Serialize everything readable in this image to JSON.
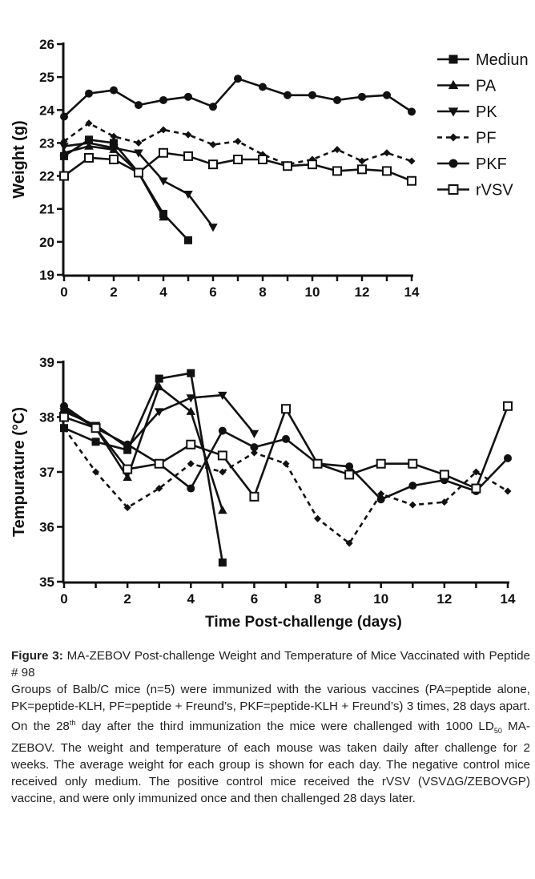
{
  "chart_data": [
    {
      "type": "line",
      "title": "",
      "ylabel": "Weight (g)",
      "xlabel": "",
      "xlim": [
        0,
        14
      ],
      "ylim": [
        19,
        26
      ],
      "xticks": [
        "0",
        "2",
        "4",
        "6",
        "8",
        "10",
        "12",
        "14"
      ],
      "yticks": [
        "19",
        "20",
        "21",
        "22",
        "23",
        "24",
        "25",
        "26"
      ],
      "legend_position": "right",
      "series": [
        {
          "name": "Mediun",
          "marker": "square-filled",
          "dashed": false,
          "x": [
            0,
            1,
            2,
            3,
            4,
            5
          ],
          "values": [
            22.6,
            23.1,
            23.0,
            22.1,
            20.85,
            20.05
          ]
        },
        {
          "name": "PA",
          "marker": "triangle-up",
          "dashed": false,
          "x": [
            0,
            1,
            2,
            3,
            4
          ],
          "values": [
            22.7,
            22.9,
            22.8,
            22.1,
            20.75
          ]
        },
        {
          "name": "PK",
          "marker": "triangle-down",
          "dashed": false,
          "x": [
            0,
            1,
            2,
            3,
            4,
            5,
            6
          ],
          "values": [
            22.9,
            23.0,
            22.85,
            22.7,
            21.85,
            21.45,
            20.45
          ]
        },
        {
          "name": "PF",
          "marker": "diamond",
          "dashed": true,
          "x": [
            0,
            1,
            2,
            3,
            4,
            5,
            6,
            7,
            8,
            9,
            10,
            11,
            12,
            13,
            14
          ],
          "values": [
            23.05,
            23.6,
            23.2,
            23.0,
            23.4,
            23.25,
            22.95,
            23.05,
            22.65,
            22.35,
            22.5,
            22.8,
            22.45,
            22.7,
            22.45
          ]
        },
        {
          "name": "PKF",
          "marker": "circle-filled",
          "dashed": false,
          "x": [
            0,
            1,
            2,
            3,
            4,
            5,
            6,
            7,
            8,
            9,
            10,
            11,
            12,
            13,
            14
          ],
          "values": [
            23.8,
            24.5,
            24.6,
            24.15,
            24.3,
            24.4,
            24.1,
            24.95,
            24.7,
            24.45,
            24.45,
            24.3,
            24.4,
            24.45,
            23.95
          ]
        },
        {
          "name": "rVSV",
          "marker": "square-open",
          "dashed": false,
          "x": [
            0,
            1,
            2,
            3,
            4,
            5,
            6,
            7,
            8,
            9,
            10,
            11,
            12,
            13,
            14
          ],
          "values": [
            22.0,
            22.55,
            22.5,
            22.1,
            22.7,
            22.6,
            22.35,
            22.5,
            22.5,
            22.3,
            22.35,
            22.15,
            22.2,
            22.15,
            21.85
          ]
        }
      ]
    },
    {
      "type": "line",
      "title": "",
      "ylabel": "Tempurature (°C)",
      "xlabel": "Time Post-challenge (days)",
      "xlim": [
        0,
        14
      ],
      "ylim": [
        35,
        39
      ],
      "xticks": [
        "0",
        "2",
        "4",
        "6",
        "8",
        "10",
        "12",
        "14"
      ],
      "yticks": [
        "35",
        "36",
        "37",
        "38",
        "39"
      ],
      "legend_position": "none",
      "series": [
        {
          "name": "Mediun",
          "marker": "square-filled",
          "dashed": false,
          "x": [
            0,
            1,
            2,
            3,
            4,
            5
          ],
          "values": [
            37.8,
            37.55,
            37.4,
            38.7,
            38.8,
            35.35
          ]
        },
        {
          "name": "PA",
          "marker": "triangle-up",
          "dashed": false,
          "x": [
            0,
            1,
            2,
            3,
            4,
            5
          ],
          "values": [
            38.15,
            37.8,
            36.9,
            38.55,
            38.1,
            36.3
          ]
        },
        {
          "name": "PK",
          "marker": "triangle-down",
          "dashed": false,
          "x": [
            0,
            1,
            2,
            3,
            4,
            5,
            6
          ],
          "values": [
            38.1,
            37.85,
            37.45,
            38.1,
            38.35,
            38.4,
            37.7
          ]
        },
        {
          "name": "PF",
          "marker": "diamond",
          "dashed": true,
          "x": [
            0,
            1,
            2,
            3,
            4,
            5,
            6,
            7,
            8,
            9,
            10,
            11,
            12,
            13,
            14
          ],
          "values": [
            37.8,
            37.0,
            36.35,
            36.7,
            37.15,
            37.0,
            37.35,
            37.15,
            36.15,
            35.7,
            36.6,
            36.4,
            36.45,
            37.0,
            36.65
          ]
        },
        {
          "name": "PKF",
          "marker": "circle-filled",
          "dashed": false,
          "x": [
            0,
            1,
            2,
            3,
            4,
            5,
            6,
            7,
            8,
            9,
            10,
            11,
            12,
            13,
            14
          ],
          "values": [
            38.2,
            37.8,
            37.5,
            37.15,
            36.7,
            37.75,
            37.45,
            37.6,
            37.15,
            37.1,
            36.5,
            36.75,
            36.85,
            36.65,
            37.25
          ]
        },
        {
          "name": "rVSV",
          "marker": "square-open",
          "dashed": false,
          "x": [
            0,
            1,
            2,
            3,
            4,
            5,
            6,
            7,
            8,
            9,
            10,
            11,
            12,
            13,
            14
          ],
          "values": [
            38.0,
            37.8,
            37.05,
            37.15,
            37.5,
            37.3,
            36.55,
            38.15,
            37.15,
            36.95,
            37.15,
            37.15,
            36.95,
            36.7,
            38.2
          ]
        }
      ]
    }
  ],
  "caption": {
    "figure_label": "Figure 3:",
    "title": " MA-ZEBOV Post-challenge Weight and Temperature of Mice Vaccinated with Peptide # 98",
    "body_1": "Groups of Balb/C mice (n=5) were immunized with the various vaccines (PA=peptide alone, PK=peptide-KLH, PF=peptide + Freund’s, PKF=peptide-KLH + Freund’s) 3 times, 28 days apart. On the 28",
    "sup_th": "th",
    "body_2": " day after the third immunization the mice were challenged with 1000 LD",
    "sub_50": "50",
    "body_3": " MA-ZEBOV. The weight and temperature of each mouse was taken daily after challenge for 2 weeks. The average weight for each group is shown for each day. The negative control mice received only medium. The positive control mice received the rVSV (VSVΔG/ZEBOVGP) vaccine, and were only immunized once and then challenged 28 days later."
  }
}
